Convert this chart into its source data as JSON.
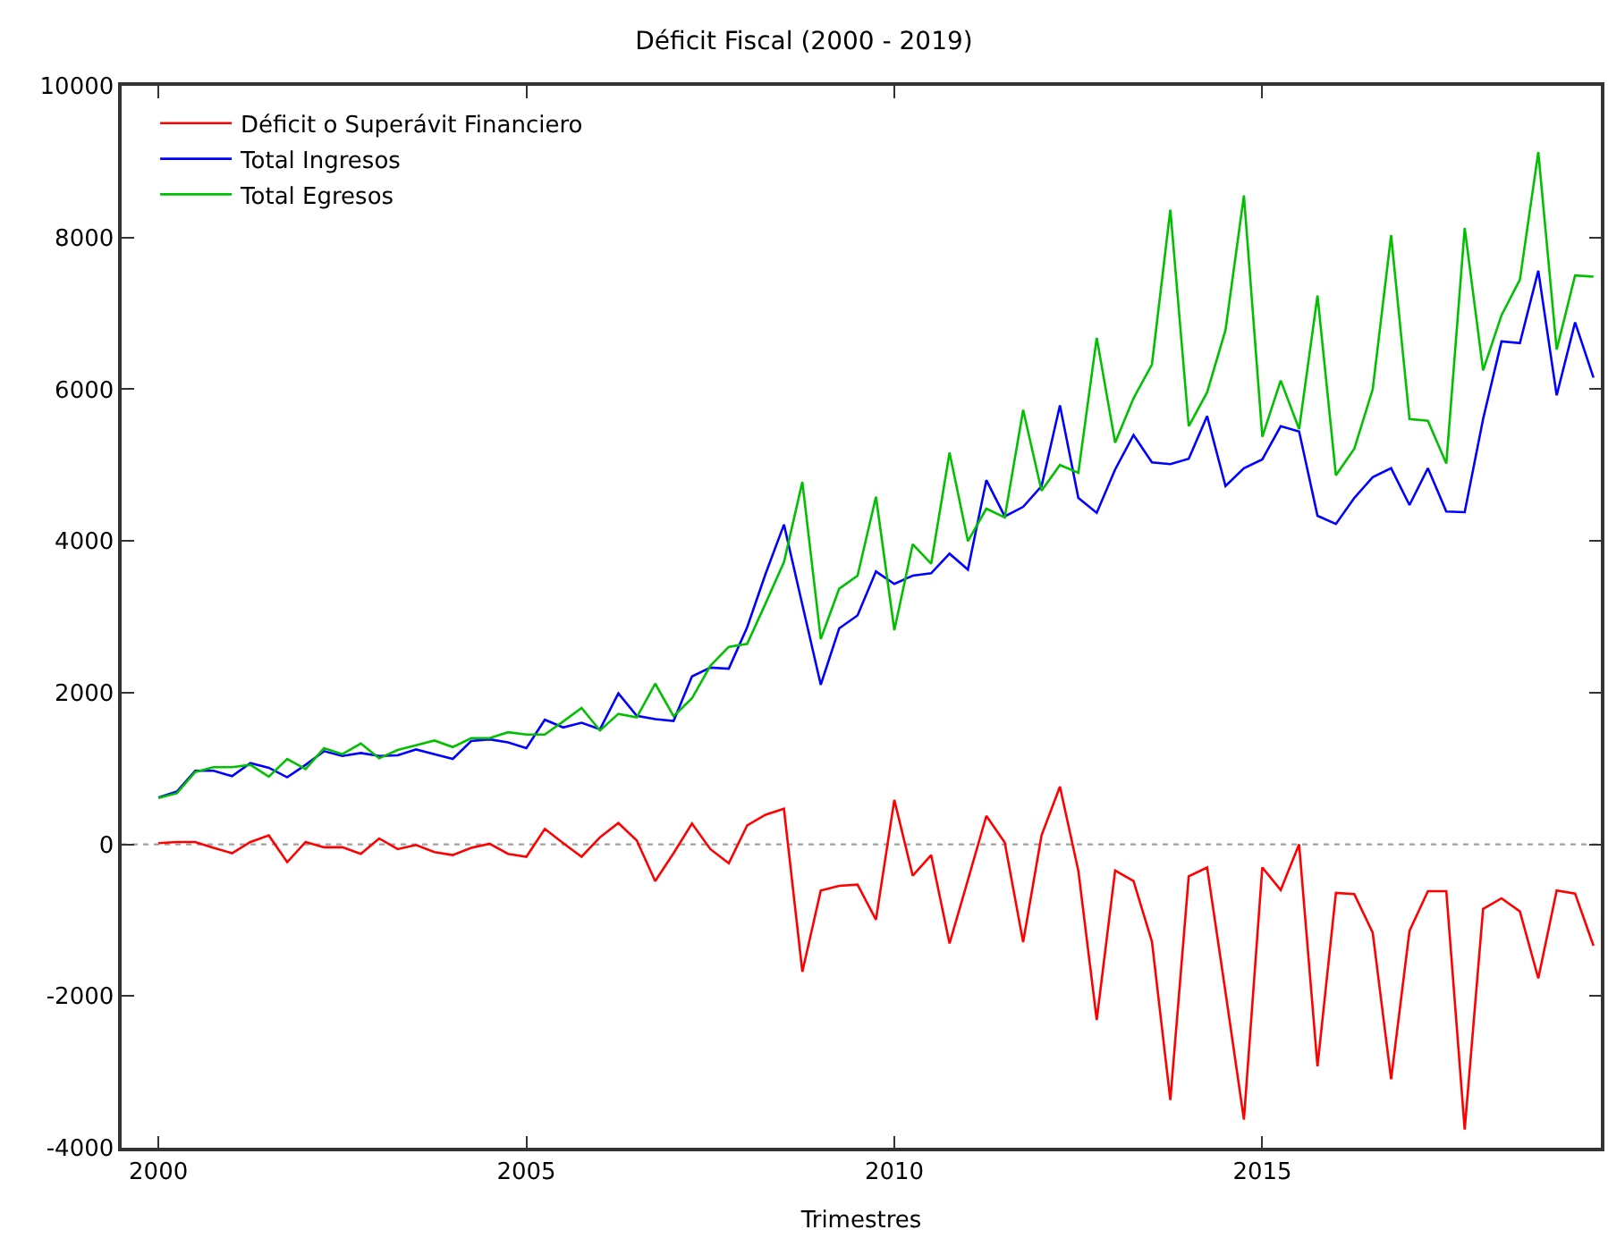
{
  "chart_data": {
    "type": "line",
    "title": "Déficit Fiscal (2000 - 2019)",
    "xlabel": "Trimestres",
    "x": [
      2000,
      2000.25,
      2000.5,
      2000.75,
      2001,
      2001.25,
      2001.5,
      2001.75,
      2002,
      2002.25,
      2002.5,
      2002.75,
      2003,
      2003.25,
      2003.5,
      2003.75,
      2004,
      2004.25,
      2004.5,
      2004.75,
      2005,
      2005.25,
      2005.5,
      2005.75,
      2006,
      2006.25,
      2006.5,
      2006.75,
      2007,
      2007.25,
      2007.5,
      2007.75,
      2008,
      2008.25,
      2008.5,
      2008.75,
      2009,
      2009.25,
      2009.5,
      2009.75,
      2010,
      2010.25,
      2010.5,
      2010.75,
      2011,
      2011.25,
      2011.5,
      2011.75,
      2012,
      2012.25,
      2012.5,
      2012.75,
      2013,
      2013.25,
      2013.5,
      2013.75,
      2014,
      2014.25,
      2014.5,
      2014.75,
      2015,
      2015.25,
      2015.5,
      2015.75,
      2016,
      2016.25,
      2016.5,
      2016.75,
      2017,
      2017.25,
      2017.5,
      2017.75,
      2018,
      2018.25,
      2018.5,
      2018.75,
      2019,
      2019.25,
      2019.5
    ],
    "series": [
      {
        "name": "Déficit o Superávit Financiero",
        "color": "#ff0000",
        "values": [
          15,
          31,
          31,
          -47,
          -117,
          31,
          117,
          -235,
          31,
          -39,
          -39,
          -125,
          78,
          -63,
          -8,
          -102,
          -141,
          -47,
          8,
          -125,
          -164,
          203,
          16,
          -164,
          94,
          280,
          50,
          -485,
          -117,
          274,
          -63,
          -250,
          250,
          391,
          469,
          -1681,
          -610,
          -547,
          -532,
          -993,
          586,
          -414,
          -141,
          -1306,
          -469,
          375,
          23,
          -1290,
          117,
          762,
          -348,
          -2315,
          -344,
          -485,
          -1282,
          -3370,
          -422,
          -305,
          -1950,
          -3628,
          -305,
          -602,
          0,
          -2925,
          -641,
          -657,
          -1165,
          -3097,
          -1142,
          -618,
          -618,
          -3761,
          -852,
          -712,
          -884,
          -1767,
          -610,
          -649,
          -1337
        ]
      },
      {
        "name": "Total Ingresos",
        "color": "#0000ff",
        "values": [
          618,
          696,
          970,
          970,
          899,
          1071,
          1009,
          884,
          1048,
          1228,
          1165,
          1204,
          1165,
          1173,
          1251,
          1189,
          1126,
          1361,
          1384,
          1345,
          1267,
          1642,
          1541,
          1603,
          1517,
          1990,
          1693,
          1650,
          1627,
          2213,
          2330,
          2315,
          2862,
          3566,
          4215,
          3160,
          2104,
          2846,
          3018,
          3597,
          3433,
          3542,
          3574,
          3832,
          3621,
          4801,
          4324,
          4449,
          4723,
          5787,
          4567,
          4371,
          4942,
          5396,
          5036,
          5013,
          5083,
          5646,
          4723,
          4958,
          5075,
          5513,
          5443,
          4332,
          4223,
          4567,
          4841,
          4958,
          4473,
          4958,
          4387,
          4379,
          5607,
          6631,
          6608,
          7562,
          5920,
          6882,
          6154
        ]
      },
      {
        "name": "Total Egresos",
        "color": "#00c000",
        "values": [
          610,
          673,
          954,
          1017,
          1017,
          1048,
          891,
          1126,
          993,
          1267,
          1189,
          1329,
          1134,
          1243,
          1306,
          1368,
          1282,
          1400,
          1400,
          1478,
          1447,
          1447,
          1619,
          1799,
          1501,
          1720,
          1674,
          2119,
          1689,
          1924,
          2354,
          2604,
          2643,
          3175,
          3722,
          4778,
          2706,
          3370,
          3542,
          4582,
          2823,
          3957,
          3699,
          5164,
          3996,
          4426,
          4309,
          5728,
          4661,
          5001,
          4899,
          6678,
          5294,
          5881,
          6326,
          8367,
          5513,
          5959,
          6780,
          8555,
          5372,
          6115,
          5474,
          7234,
          4864,
          5216,
          5998,
          8031,
          5607,
          5583,
          5020,
          8125,
          6248,
          6975,
          7444,
          9126,
          6522,
          7499,
          7484
        ]
      }
    ],
    "xlim": [
      1999.5,
      2019.6
    ],
    "xticks": [
      2000,
      2005,
      2010,
      2015
    ],
    "ylim": [
      -4000,
      10000
    ],
    "yticks": [
      -4000,
      -2000,
      0,
      2000,
      4000,
      6000,
      8000,
      10000
    ],
    "ref_lines": [
      {
        "axis": "y",
        "value": 0,
        "color": "#a0a0a0",
        "line_style": "dotted"
      }
    ],
    "grid": false,
    "legend": "top left",
    "marker": "none",
    "line_style": "solid"
  }
}
